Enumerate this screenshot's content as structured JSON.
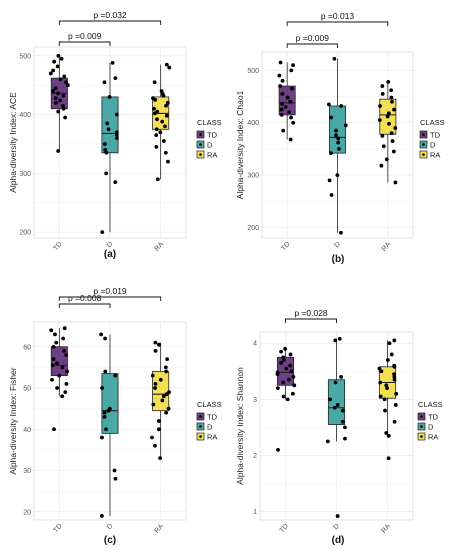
{
  "chart_data": [
    {
      "type": "boxplot",
      "panel_label": "(a)",
      "ylabel": "Alpha-diversity Index: ACE",
      "categories": [
        "TD",
        "D",
        "RA"
      ],
      "yticks": [
        200,
        300,
        400,
        500
      ],
      "ylim": [
        190,
        515
      ],
      "series": [
        {
          "name": "TD",
          "color": "#6e3f86",
          "q1": 410,
          "median": 436,
          "q3": 462,
          "whisker_low": 338,
          "whisker_high": 500,
          "points": [
            500,
            495,
            490,
            482,
            475,
            470,
            465,
            460,
            455,
            450,
            445,
            440,
            436,
            432,
            428,
            424,
            420,
            415,
            410,
            405,
            395,
            338
          ]
        },
        {
          "name": "D",
          "color": "#4aa9a6",
          "q1": 335,
          "median": 368,
          "q3": 430,
          "whisker_low": 200,
          "whisker_high": 488,
          "points": [
            488,
            462,
            455,
            430,
            400,
            385,
            375,
            370,
            366,
            360,
            350,
            340,
            335,
            300,
            285,
            200
          ]
        },
        {
          "name": "RA",
          "color": "#f2df55",
          "q1": 375,
          "median": 402,
          "q3": 430,
          "whisker_low": 290,
          "whisker_high": 485,
          "points": [
            485,
            480,
            455,
            440,
            435,
            432,
            428,
            425,
            420,
            415,
            410,
            405,
            402,
            398,
            392,
            388,
            380,
            375,
            370,
            365,
            355,
            345,
            335,
            320,
            290
          ]
        }
      ],
      "annotations": [
        {
          "text": "p =0.009",
          "from": "TD",
          "to": "D"
        },
        {
          "text": "p =0.032",
          "from": "TD",
          "to": "RA"
        }
      ],
      "legend": {
        "title": "CLASS",
        "items": [
          "TD",
          "D",
          "RA"
        ]
      }
    },
    {
      "type": "boxplot",
      "panel_label": "(b)",
      "ylabel": "Alpha-diversity Index: Chao1",
      "categories": [
        "TD",
        "D",
        "RA"
      ],
      "yticks": [
        200,
        300,
        400,
        500
      ],
      "ylim": [
        180,
        535
      ],
      "series": [
        {
          "name": "TD",
          "color": "#6e3f86",
          "q1": 415,
          "median": 438,
          "q3": 470,
          "whisker_low": 368,
          "whisker_high": 515,
          "points": [
            515,
            510,
            500,
            490,
            480,
            470,
            465,
            455,
            448,
            440,
            436,
            430,
            425,
            420,
            415,
            410,
            400,
            385,
            368
          ]
        },
        {
          "name": "D",
          "color": "#4aa9a6",
          "q1": 342,
          "median": 372,
          "q3": 432,
          "whisker_low": 190,
          "whisker_high": 522,
          "points": [
            522,
            435,
            432,
            410,
            395,
            385,
            376,
            370,
            362,
            350,
            342,
            300,
            290,
            262,
            190
          ]
        },
        {
          "name": "RA",
          "color": "#f2df55",
          "q1": 378,
          "median": 415,
          "q3": 445,
          "whisker_low": 286,
          "whisker_high": 478,
          "points": [
            478,
            470,
            462,
            455,
            448,
            440,
            432,
            425,
            418,
            412,
            405,
            398,
            390,
            380,
            375,
            365,
            355,
            345,
            330,
            318,
            286
          ]
        }
      ],
      "annotations": [
        {
          "text": "p =0.009",
          "from": "TD",
          "to": "D"
        },
        {
          "text": "p =0.013",
          "from": "TD",
          "to": "RA"
        }
      ],
      "legend": {
        "title": "CLASS",
        "items": [
          "TD",
          "D",
          "RA"
        ]
      }
    },
    {
      "type": "boxplot",
      "panel_label": "(c)",
      "ylabel": "Alpha-diversity Index: Fisher",
      "categories": [
        "TD",
        "D",
        "RA"
      ],
      "yticks": [
        20,
        30,
        40,
        50,
        60
      ],
      "ylim": [
        18,
        66
      ],
      "series": [
        {
          "name": "TD",
          "color": "#6e3f86",
          "q1": 53,
          "median": 55.5,
          "q3": 60,
          "whisker_low": 48,
          "whisker_high": 64.5,
          "points": [
            64.5,
            64,
            63,
            62,
            61,
            60,
            59,
            58,
            57,
            56,
            55.5,
            55,
            54,
            53,
            52,
            51,
            50,
            49,
            48,
            40
          ]
        },
        {
          "name": "D",
          "color": "#4aa9a6",
          "q1": 39,
          "median": 44.5,
          "q3": 53.5,
          "whisker_low": 19,
          "whisker_high": 63,
          "points": [
            63,
            62,
            54,
            53,
            50,
            45,
            44.5,
            44,
            43,
            40,
            38,
            30,
            28,
            19
          ]
        },
        {
          "name": "RA",
          "color": "#f2df55",
          "q1": 44.5,
          "median": 48.5,
          "q3": 54,
          "whisker_low": 33,
          "whisker_high": 61,
          "points": [
            61,
            60.5,
            59,
            57,
            55,
            54,
            53,
            52,
            51,
            50,
            49,
            48.5,
            48,
            47,
            46,
            45,
            44,
            42,
            40,
            38,
            36,
            33
          ]
        }
      ],
      "annotations": [
        {
          "text": "p =0.008",
          "from": "TD",
          "to": "D"
        },
        {
          "text": "p =0.019",
          "from": "TD",
          "to": "RA"
        }
      ],
      "legend": {
        "title": "CLASS",
        "items": [
          "TD",
          "D",
          "RA"
        ]
      }
    },
    {
      "type": "boxplot",
      "panel_label": "(d)",
      "ylabel": "Alpha-diversity Index: Shannon",
      "categories": [
        "TD",
        "D",
        "RA"
      ],
      "yticks": [
        1,
        2,
        3,
        4
      ],
      "ylim": [
        0.85,
        4.2
      ],
      "series": [
        {
          "name": "TD",
          "color": "#6e3f86",
          "q1": 3.25,
          "median": 3.48,
          "q3": 3.75,
          "whisker_low": 3.0,
          "whisker_high": 3.9,
          "points": [
            3.9,
            3.85,
            3.8,
            3.75,
            3.7,
            3.65,
            3.6,
            3.55,
            3.5,
            3.48,
            3.45,
            3.4,
            3.35,
            3.3,
            3.25,
            3.2,
            3.1,
            3.05,
            3.0,
            2.1
          ]
        },
        {
          "name": "D",
          "color": "#4aa9a6",
          "q1": 2.55,
          "median": 2.85,
          "q3": 3.35,
          "whisker_low": 2.25,
          "whisker_high": 4.08,
          "points": [
            4.08,
            4.05,
            3.4,
            3.3,
            3.0,
            2.9,
            2.85,
            2.8,
            2.6,
            2.5,
            2.3,
            2.25,
            0.92
          ]
        },
        {
          "name": "RA",
          "color": "#f2df55",
          "q1": 3.02,
          "median": 3.3,
          "q3": 3.58,
          "whisker_low": 2.35,
          "whisker_high": 4.05,
          "points": [
            4.05,
            4.0,
            3.8,
            3.7,
            3.6,
            3.58,
            3.55,
            3.5,
            3.45,
            3.4,
            3.35,
            3.3,
            3.25,
            3.2,
            3.1,
            3.05,
            3.0,
            2.9,
            2.8,
            2.6,
            2.4,
            2.35,
            1.95
          ]
        }
      ],
      "annotations": [
        {
          "text": "p =0.028",
          "from": "TD",
          "to": "D"
        }
      ],
      "legend": {
        "title": "CLASS",
        "items": [
          "TD",
          "D",
          "RA"
        ]
      }
    }
  ]
}
